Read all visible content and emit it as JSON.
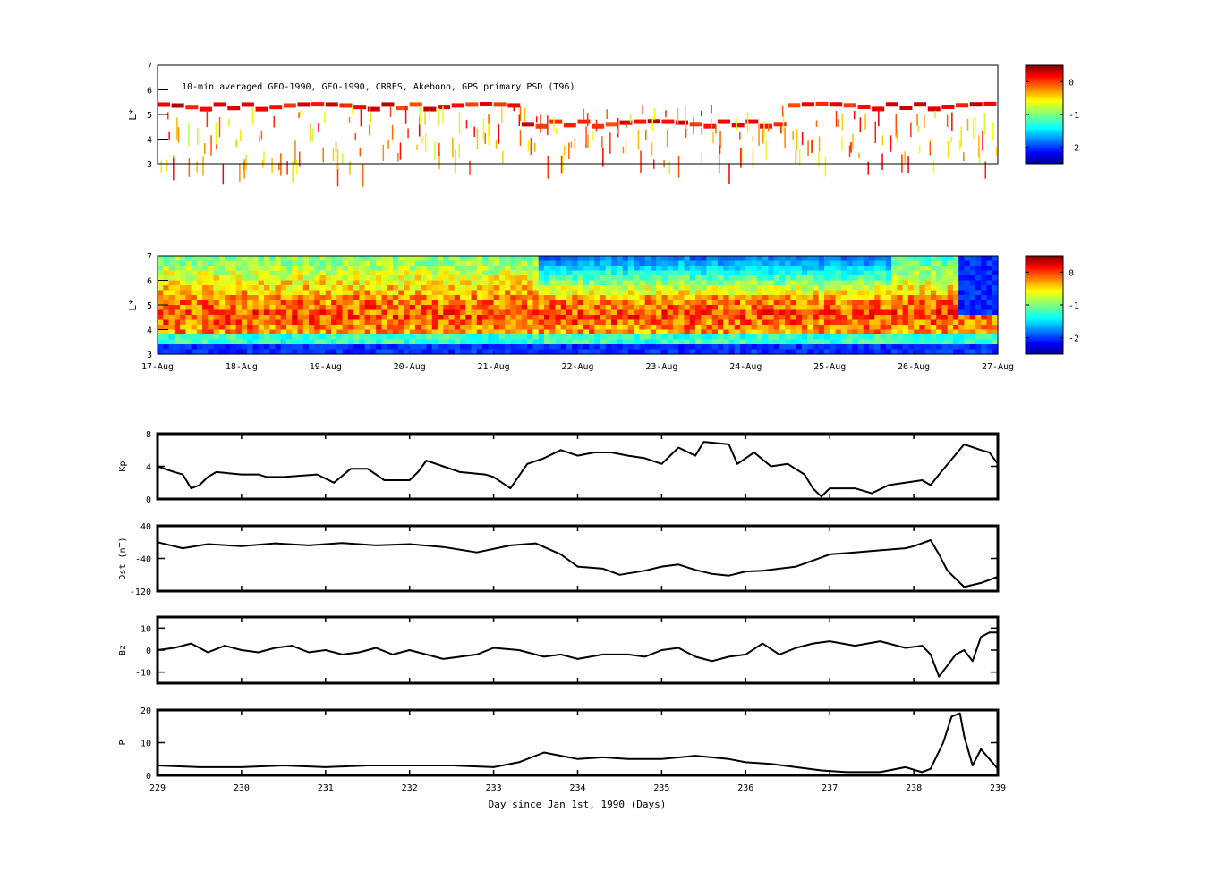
{
  "chart_data": [
    {
      "type": "heatmap",
      "annotation": "10-min averaged GEO-1990, GEO-1990, CRRES, Akebono, GPS  primary PSD (T96)",
      "ylabel": "L*",
      "ylim": [
        3,
        7
      ],
      "yticks": [
        "3",
        "4",
        "5",
        "6",
        "7"
      ],
      "xlim": [
        229,
        239
      ],
      "colorbar": {
        "ticks": [
          "0",
          "-1",
          "-2"
        ],
        "range": [
          -2.5,
          0.5
        ]
      },
      "sparse": true
    },
    {
      "type": "heatmap",
      "ylabel": "L*",
      "ylim": [
        3,
        7
      ],
      "yticks": [
        "3",
        "4",
        "5",
        "6",
        "7"
      ],
      "xlim": [
        229,
        239
      ],
      "xticks": [
        "17-Aug",
        "18-Aug",
        "19-Aug",
        "20-Aug",
        "21-Aug",
        "22-Aug",
        "23-Aug",
        "24-Aug",
        "25-Aug",
        "26-Aug",
        "27-Aug"
      ],
      "colorbar": {
        "ticks": [
          "0",
          "-1",
          "-2"
        ],
        "range": [
          -2.5,
          0.5
        ]
      },
      "sparse": false
    },
    {
      "type": "line",
      "ylabel": "Kp",
      "ylim": [
        0,
        8
      ],
      "yticks": [
        "0",
        "4",
        "8"
      ],
      "xlim": [
        229,
        239
      ],
      "x": [
        229.0,
        229.2,
        229.3,
        229.4,
        229.5,
        229.6,
        229.7,
        230.0,
        230.2,
        230.3,
        230.5,
        230.9,
        231.1,
        231.3,
        231.5,
        231.7,
        232.0,
        232.1,
        232.2,
        232.4,
        232.6,
        232.9,
        233.0,
        233.2,
        233.4,
        233.6,
        233.8,
        234.0,
        234.2,
        234.4,
        234.6,
        234.8,
        235.0,
        235.2,
        235.4,
        235.5,
        235.8,
        235.9,
        236.1,
        236.3,
        236.5,
        236.7,
        236.8,
        236.9,
        237.0,
        237.3,
        237.5,
        237.7,
        237.9,
        238.1,
        238.2,
        238.3,
        238.6,
        238.8,
        238.9,
        239.0
      ],
      "series": [
        {
          "values": [
            4.0,
            3.3,
            3.0,
            1.3,
            1.7,
            2.7,
            3.3,
            3.0,
            3.0,
            2.7,
            2.7,
            3.0,
            2.0,
            3.7,
            3.7,
            2.3,
            2.3,
            3.3,
            4.7,
            4.0,
            3.3,
            3.0,
            2.7,
            1.3,
            4.3,
            5.0,
            6.0,
            5.3,
            5.7,
            5.7,
            5.3,
            5.0,
            4.3,
            6.3,
            5.3,
            7.0,
            6.7,
            4.3,
            5.7,
            4.0,
            4.3,
            3.0,
            1.3,
            0.3,
            1.3,
            1.3,
            0.7,
            1.7,
            2.0,
            2.3,
            1.7,
            3.0,
            6.7,
            6.0,
            5.7,
            4.3
          ],
          "color": "#000000"
        }
      ]
    },
    {
      "type": "line",
      "ylabel": "Dst (nT)",
      "ylim": [
        -120,
        40
      ],
      "yticks": [
        "-120",
        "-40",
        "40"
      ],
      "xlim": [
        229,
        239
      ],
      "x": [
        229.0,
        229.3,
        229.6,
        230.0,
        230.4,
        230.8,
        231.2,
        231.6,
        232.0,
        232.4,
        232.8,
        233.2,
        233.5,
        233.8,
        234.0,
        234.3,
        234.5,
        234.8,
        235.0,
        235.2,
        235.4,
        235.6,
        235.8,
        236.0,
        236.2,
        236.4,
        236.6,
        236.8,
        237.0,
        237.3,
        237.6,
        237.9,
        238.0,
        238.2,
        238.3,
        238.4,
        238.6,
        238.8,
        239.0
      ],
      "series": [
        {
          "values": [
            0,
            -15,
            -5,
            -10,
            -3,
            -8,
            -2,
            -8,
            -5,
            -12,
            -25,
            -8,
            -3,
            -30,
            -60,
            -65,
            -80,
            -70,
            -60,
            -55,
            -68,
            -78,
            -82,
            -72,
            -70,
            -65,
            -60,
            -45,
            -30,
            -25,
            -20,
            -15,
            -10,
            5,
            -30,
            -70,
            -110,
            -100,
            -85
          ],
          "color": "#000000"
        }
      ]
    },
    {
      "type": "line",
      "ylabel": "Bz",
      "ylim": [
        -15,
        15
      ],
      "yticks": [
        "-10",
        "0",
        "10"
      ],
      "xlim": [
        229,
        239
      ],
      "x": [
        229.0,
        229.2,
        229.4,
        229.6,
        229.8,
        230.0,
        230.2,
        230.4,
        230.6,
        230.8,
        231.0,
        231.2,
        231.4,
        231.6,
        231.8,
        232.0,
        232.2,
        232.4,
        232.6,
        232.8,
        233.0,
        233.3,
        233.6,
        233.8,
        234.0,
        234.3,
        234.6,
        234.8,
        235.0,
        235.2,
        235.4,
        235.6,
        235.8,
        236.0,
        236.2,
        236.4,
        236.6,
        236.8,
        237.0,
        237.3,
        237.6,
        237.9,
        238.1,
        238.2,
        238.3,
        238.4,
        238.5,
        238.6,
        238.7,
        238.8,
        238.9,
        239.0
      ],
      "series": [
        {
          "name": "",
          "values": [
            0,
            1,
            3,
            -1,
            2,
            0,
            -1,
            1,
            2,
            -1,
            0,
            -2,
            -1,
            1,
            -2,
            0,
            -2,
            -4,
            -3,
            -2,
            1,
            0,
            -3,
            -2,
            -4,
            -2,
            -2,
            -3,
            0,
            1,
            -3,
            -5,
            -3,
            -2,
            3,
            -2,
            1,
            3,
            4,
            2,
            4,
            1,
            2,
            -2,
            -12,
            -7,
            -2,
            0,
            -5,
            6,
            8,
            8
          ],
          "color": "#000000"
        }
      ]
    },
    {
      "type": "line",
      "ylabel": "P",
      "ylim": [
        0,
        20
      ],
      "yticks": [
        "0",
        "10",
        "20"
      ],
      "xlim": [
        229,
        239
      ],
      "xticks": [
        "229",
        "230",
        "231",
        "232",
        "233",
        "234",
        "235",
        "236",
        "237",
        "238",
        "239"
      ],
      "xlabel": "Day since Jan 1st, 1990 (Days)",
      "x": [
        229.0,
        229.5,
        230.0,
        230.5,
        231.0,
        231.5,
        232.0,
        232.5,
        233.0,
        233.3,
        233.6,
        233.8,
        234.0,
        234.3,
        234.6,
        235.0,
        235.4,
        235.8,
        236.0,
        236.3,
        236.6,
        236.9,
        237.2,
        237.6,
        237.9,
        238.1,
        238.2,
        238.35,
        238.45,
        238.55,
        238.6,
        238.7,
        238.8,
        238.9,
        239.0
      ],
      "series": [
        {
          "values": [
            3,
            2.5,
            2.5,
            3,
            2.5,
            3,
            3,
            3,
            2.5,
            4,
            7,
            6,
            5,
            5.5,
            5,
            5,
            6,
            5,
            4,
            3.5,
            2.5,
            1.5,
            1,
            1,
            2.5,
            1,
            2,
            10,
            18,
            19,
            12,
            3,
            8,
            5,
            2
          ],
          "color": "#000000"
        }
      ]
    }
  ]
}
